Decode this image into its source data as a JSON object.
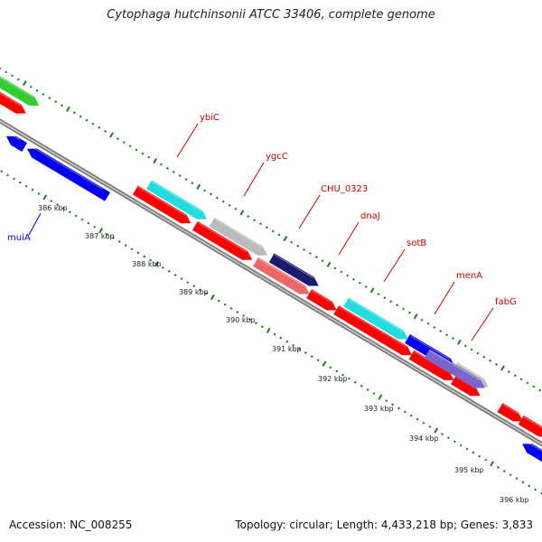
{
  "title": "Cytophaga hutchinsonii ATCC 33406, complete genome",
  "accession": "Accession: NC_008255",
  "summary": "Topology: circular; Length: 4,433,218 bp; Genes: 3,833",
  "colors": {
    "backbone": "#808080",
    "tick": "#1f7a1f",
    "label": "#cc0000",
    "label_forward": "#0000cc",
    "red": "#ff0000",
    "blue": "#0000ee",
    "cyan": "#22dddd",
    "gray": "#bbbbbb",
    "navy": "#1a1a6e",
    "salmon": "#ee6666",
    "purple": "#7766cc",
    "green": "#33cc33"
  },
  "tick_labels": [
    "386 kbp",
    "387 kbp",
    "388 kbp",
    "389 kbp",
    "390 kbp",
    "391 kbp",
    "392 kbp",
    "393 kbp",
    "394 kbp",
    "395 kbp",
    "396 kbp"
  ],
  "gene_labels": [
    {
      "name": "ybiC",
      "color": "label"
    },
    {
      "name": "ygcC",
      "color": "label"
    },
    {
      "name": "CHU_0323",
      "color": "label"
    },
    {
      "name": "dnaJ",
      "color": "label"
    },
    {
      "name": "sotB",
      "color": "label"
    },
    {
      "name": "menA",
      "color": "label"
    },
    {
      "name": "fabG",
      "color": "label"
    },
    {
      "name": "muiA",
      "color": "label_forward"
    }
  ]
}
